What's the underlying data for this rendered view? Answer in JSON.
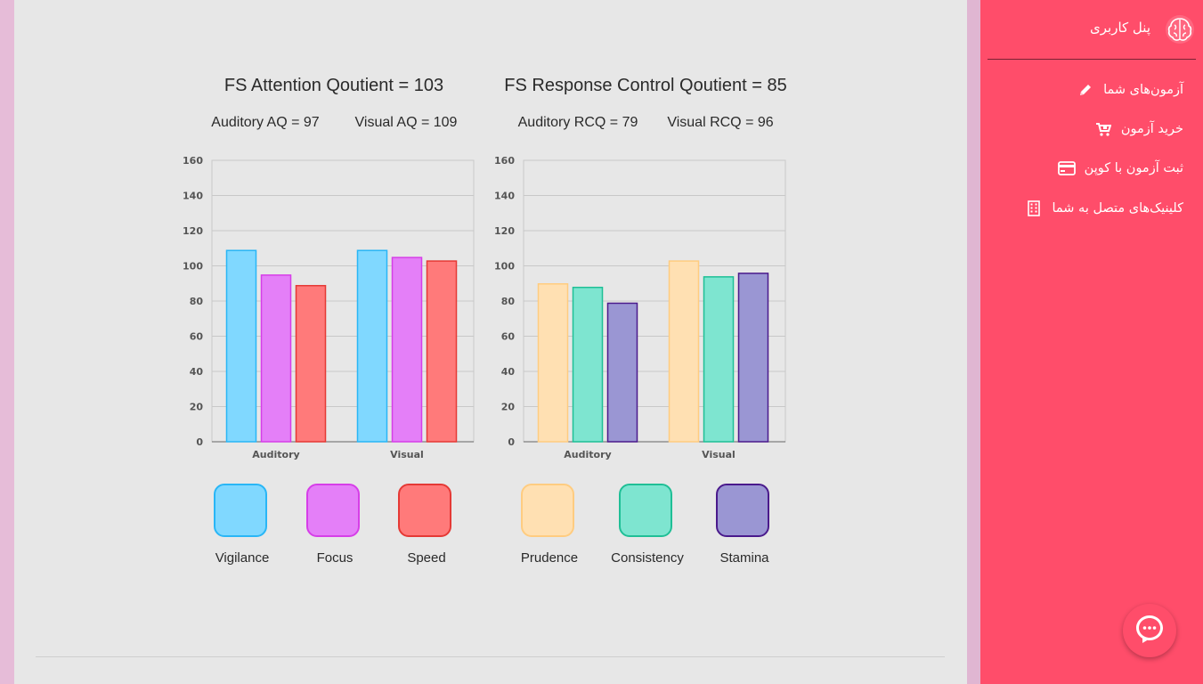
{
  "sidebar": {
    "title": "پنل کاربری",
    "items": [
      {
        "label": "آزمون‌های شما",
        "icon": "pencil-icon"
      },
      {
        "label": "خرید آزمون",
        "icon": "cart-icon"
      },
      {
        "label": "ثبت آزمون با کوپن",
        "icon": "credit-card-icon"
      },
      {
        "label": "کلینیک‌های متصل به شما",
        "icon": "building-icon"
      }
    ]
  },
  "attention": {
    "title": "FS Attention Qoutient = 103",
    "sub_left": "Auditory AQ = 97",
    "sub_right": "Visual AQ = 109",
    "legend": [
      "Vigilance",
      "Focus",
      "Speed"
    ]
  },
  "response": {
    "title": "FS Response Control Qoutient = 85",
    "sub_left": "Auditory RCQ = 79",
    "sub_right": "Visual RCQ = 96",
    "legend": [
      "Prudence",
      "Consistency",
      "Stamina"
    ]
  },
  "chart_data": [
    {
      "type": "bar",
      "title": "FS Attention Qoutient = 103",
      "categories": [
        "Auditory",
        "Visual"
      ],
      "series": [
        {
          "name": "Vigilance",
          "values": [
            109,
            109
          ],
          "fill": "#80d8ff",
          "stroke": "#29b6f6"
        },
        {
          "name": "Focus",
          "values": [
            95,
            105
          ],
          "fill": "#e47ff8",
          "stroke": "#d63ee8"
        },
        {
          "name": "Speed",
          "values": [
            89,
            103
          ],
          "fill": "#ff7a7a",
          "stroke": "#e53935"
        }
      ],
      "ylim": [
        0,
        160
      ],
      "yticks": [
        0,
        20,
        40,
        60,
        80,
        100,
        120,
        140,
        160
      ],
      "grid": true
    },
    {
      "type": "bar",
      "title": "FS Response Control Qoutient = 85",
      "categories": [
        "Auditory",
        "Visual"
      ],
      "series": [
        {
          "name": "Prudence",
          "values": [
            90,
            103
          ],
          "fill": "#ffe0b2",
          "stroke": "#ffcc80"
        },
        {
          "name": "Consistency",
          "values": [
            88,
            94
          ],
          "fill": "#7ee5d0",
          "stroke": "#1fbf96"
        },
        {
          "name": "Stamina",
          "values": [
            79,
            96
          ],
          "fill": "#9a96d3",
          "stroke": "#4a1a8c"
        }
      ],
      "ylim": [
        0,
        160
      ],
      "yticks": [
        0,
        20,
        40,
        60,
        80,
        100,
        120,
        140,
        160
      ],
      "grid": true
    }
  ]
}
